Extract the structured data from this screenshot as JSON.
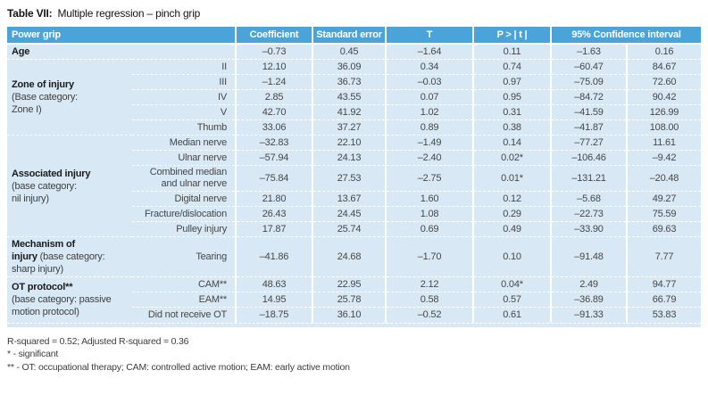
{
  "title": {
    "label": "Table VII:",
    "text": "Multiple regression – pinch grip"
  },
  "colors": {
    "header_bg": "#4aa4d9",
    "row_bg": "#d8e8f4",
    "separator": "#ffffff",
    "header_text": "#ffffff",
    "body_text": "#474747",
    "label_bold_text": "#1b1b1b"
  },
  "table": {
    "headers": {
      "power_grip": "Power grip",
      "coefficient": "Coefficient",
      "standard_error": "Standard error",
      "t": "T",
      "p": "P > | t |",
      "ci": "95% Confidence interval"
    },
    "column_keys": [
      "coefficient",
      "standard_error",
      "t",
      "p",
      "ci_low",
      "ci_high"
    ],
    "groups": [
      {
        "label_bold": "Age",
        "label_rest": "",
        "rows": [
          {
            "category": "",
            "values": [
              "–0.73",
              "0.45",
              "–1.64",
              "0.11",
              "–1.63",
              "0.16"
            ]
          }
        ]
      },
      {
        "label_bold": "Zone of injury",
        "label_rest": "\n(Base category:\nZone I)",
        "rows": [
          {
            "category": "II",
            "values": [
              "12.10",
              "36.09",
              "0.34",
              "0.74",
              "–60.47",
              "84.67"
            ]
          },
          {
            "category": "III",
            "values": [
              "–1.24",
              "36.73",
              "–0.03",
              "0.97",
              "–75.09",
              "72.60"
            ]
          },
          {
            "category": "IV",
            "values": [
              "2.85",
              "43.55",
              "0.07",
              "0.95",
              "–84.72",
              "90.42"
            ]
          },
          {
            "category": "V",
            "values": [
              "42.70",
              "41.92",
              "1.02",
              "0.31",
              "–41.59",
              "126.99"
            ]
          },
          {
            "category": "Thumb",
            "values": [
              "33.06",
              "37.27",
              "0.89",
              "0.38",
              "–41.87",
              "108.00"
            ]
          }
        ]
      },
      {
        "label_bold": "Associated injury",
        "label_rest": "\n(base category:\nnil injury)",
        "rows": [
          {
            "category": "Median nerve",
            "values": [
              "–32.83",
              "22.10",
              "–1.49",
              "0.14",
              "–77.27",
              "11.61"
            ]
          },
          {
            "category": "Ulnar nerve",
            "values": [
              "–57.94",
              "24.13",
              "–2.40",
              "0.02*",
              "–106.46",
              "–9.42"
            ]
          },
          {
            "category": "Combined median\nand ulnar nerve",
            "values": [
              "–75.84",
              "27.53",
              "–2.75",
              "0.01*",
              "–131.21",
              "–20.48"
            ]
          },
          {
            "category": "Digital nerve",
            "values": [
              "21.80",
              "13.67",
              "1.60",
              "0.12",
              "–5.68",
              "49.27"
            ]
          },
          {
            "category": "Fracture/dislocation",
            "values": [
              "26.43",
              "24.45",
              "1.08",
              "0.29",
              "–22.73",
              "75.59"
            ]
          },
          {
            "category": "Pulley injury",
            "values": [
              "17.87",
              "25.74",
              "0.69",
              "0.49",
              "–33.90",
              "69.63"
            ]
          }
        ]
      },
      {
        "label_bold": "Mechanism of\ninjury",
        "label_rest": " (base category:\nsharp injury)",
        "rows": [
          {
            "category": "Tearing",
            "values": [
              "–41.86",
              "24.68",
              "–1.70",
              "0.10",
              "–91.48",
              "7.77"
            ]
          }
        ]
      },
      {
        "label_bold": "OT protocol**",
        "label_rest": "\n(base category: passive\nmotion protocol)",
        "rows": [
          {
            "category": "CAM**",
            "values": [
              "48.63",
              "22.95",
              "2.12",
              "0.04*",
              "2.49",
              "94.77"
            ]
          },
          {
            "category": "EAM**",
            "values": [
              "14.95",
              "25.78",
              "0.58",
              "0.57",
              "–36.89",
              "66.79"
            ]
          },
          {
            "category": "Did not receive OT",
            "values": [
              "–18.75",
              "36.10",
              "–0.52",
              "0.61",
              "–91.33",
              "53.83"
            ]
          }
        ]
      }
    ]
  },
  "footnotes": {
    "line1": "R-squared = 0.52; Adjusted R-squared = 0.36",
    "line2": "* - significant",
    "line3": "** - OT: occupational therapy; CAM: controlled active motion; EAM: early active motion"
  }
}
